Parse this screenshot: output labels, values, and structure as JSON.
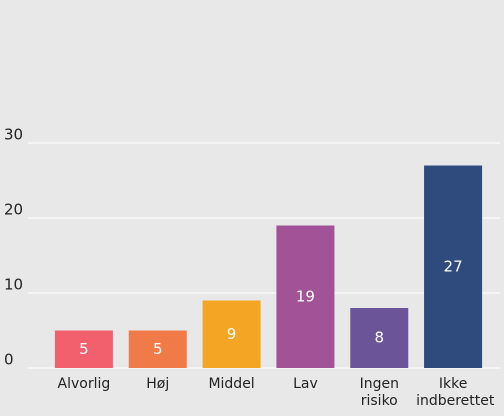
{
  "chart_data": {
    "type": "bar",
    "categories": [
      "Alvorlig",
      "Høj",
      "Middel",
      "Lav",
      "Ingen risiko",
      "Ikke indberettet"
    ],
    "values": [
      5,
      5,
      9,
      19,
      8,
      27
    ],
    "colors": [
      "#f2606e",
      "#f07b48",
      "#f5a524",
      "#a25297",
      "#6b5598",
      "#2f4a7c"
    ],
    "ylim": [
      0,
      30
    ],
    "yticks": [
      0,
      10,
      20,
      30
    ],
    "grid": true
  }
}
